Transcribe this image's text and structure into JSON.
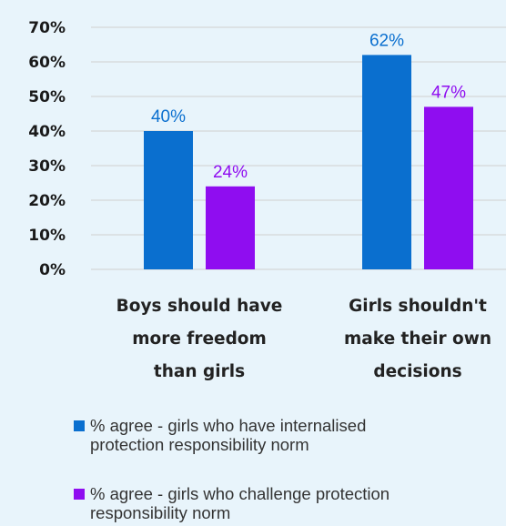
{
  "chart_data": {
    "type": "bar",
    "categories": [
      [
        "Boys should have",
        "more freedom",
        "than girls"
      ],
      [
        "Girls shouldn't",
        "make their own",
        "decisions"
      ]
    ],
    "series": [
      {
        "name": "% agree - girls who have internalised protection responsibility norm",
        "values": [
          40,
          62
        ],
        "color": "#0a6fcf"
      },
      {
        "name": "% agree - girls who challenge protection responsibility norm",
        "values": [
          24,
          47
        ],
        "color": "#8f0df0"
      }
    ],
    "ylim": [
      0,
      70
    ],
    "yticks": [
      "0%",
      "10%",
      "20%",
      "30%",
      "40%",
      "50%",
      "60%",
      "70%"
    ],
    "value_suffix": "%",
    "grid": true,
    "legend_position": "bottom"
  },
  "legend": {
    "item1": [
      "% agree - girls who have internalised",
      "protection responsibility norm"
    ],
    "item2": [
      "% agree - girls who challenge protection",
      "responsibility norm"
    ]
  }
}
